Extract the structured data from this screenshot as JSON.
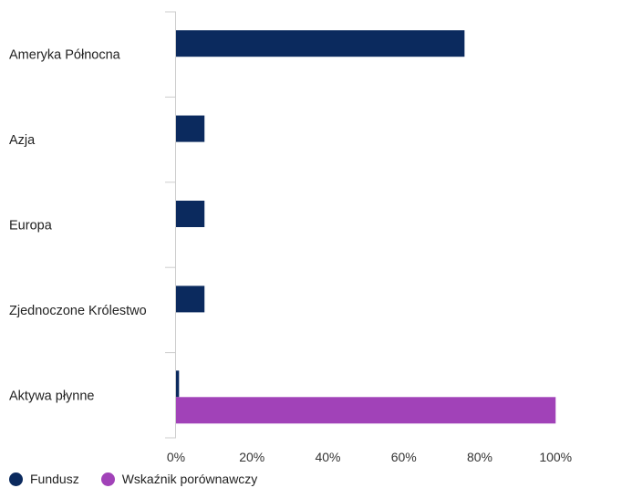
{
  "chart_data": {
    "type": "bar",
    "orientation": "horizontal",
    "categories": [
      "Ameryka Północna",
      "Azja",
      "Europa",
      "Zjednoczone Królestwo",
      "Aktywa płynne"
    ],
    "series": [
      {
        "name": "Fundusz",
        "color": "#0b2a5e",
        "values": [
          76,
          7.5,
          7.5,
          7.5,
          0.8
        ]
      },
      {
        "name": "Wskaźnik porównawczy",
        "color": "#a142b8",
        "values": [
          null,
          null,
          null,
          null,
          100
        ]
      }
    ],
    "x_ticks": [
      "0%",
      "20%",
      "40%",
      "60%",
      "80%",
      "100%"
    ],
    "xlim": [
      0,
      117
    ],
    "legend_position": "bottom-left",
    "grid": false
  }
}
